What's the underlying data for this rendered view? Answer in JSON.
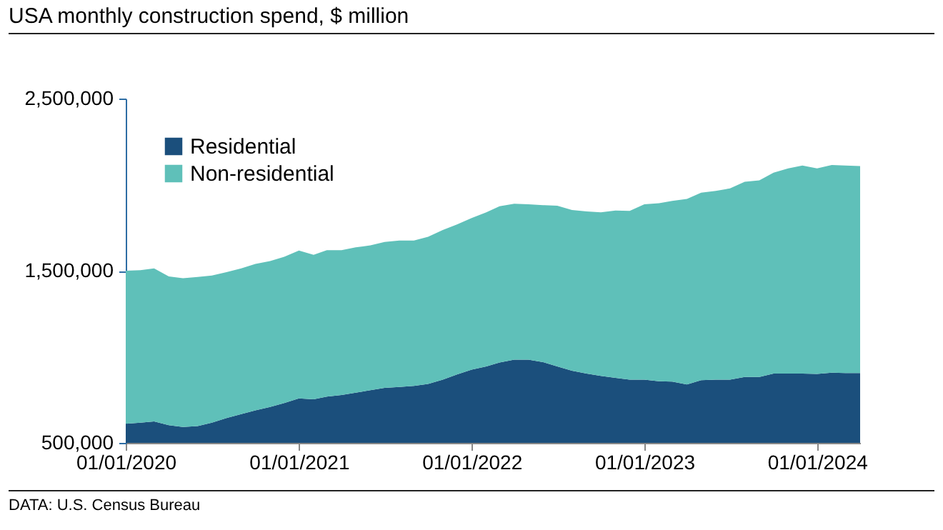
{
  "chart_data": {
    "type": "area",
    "stacked": true,
    "title": "USA monthly construction spend, $ million",
    "annotations": [
      "DATA: U.S. Census Bureau"
    ],
    "x": [
      "2020-01",
      "2020-02",
      "2020-03",
      "2020-04",
      "2020-05",
      "2020-06",
      "2020-07",
      "2020-08",
      "2020-09",
      "2020-10",
      "2020-11",
      "2020-12",
      "2021-01",
      "2021-02",
      "2021-03",
      "2021-04",
      "2021-05",
      "2021-06",
      "2021-07",
      "2021-08",
      "2021-09",
      "2021-10",
      "2021-11",
      "2021-12",
      "2022-01",
      "2022-02",
      "2022-03",
      "2022-04",
      "2022-05",
      "2022-06",
      "2022-07",
      "2022-08",
      "2022-09",
      "2022-10",
      "2022-11",
      "2022-12",
      "2023-01",
      "2023-02",
      "2023-03",
      "2023-04",
      "2023-05",
      "2023-06",
      "2023-07",
      "2023-08",
      "2023-09",
      "2023-10",
      "2023-11",
      "2023-12",
      "2024-01",
      "2024-02",
      "2024-03",
      "2024-04"
    ],
    "series": [
      {
        "name": "Residential",
        "color": "#1b4f7c",
        "values": [
          611000,
          617000,
          625000,
          603000,
          592000,
          597000,
          617000,
          644000,
          667000,
          689000,
          708000,
          731000,
          758000,
          753000,
          769000,
          778000,
          792000,
          806000,
          819000,
          825000,
          831000,
          842000,
          867000,
          897000,
          925000,
          944000,
          967000,
          983000,
          983000,
          969000,
          944000,
          919000,
          903000,
          889000,
          878000,
          867000,
          867000,
          858000,
          856000,
          839000,
          864000,
          867000,
          867000,
          883000,
          883000,
          903000,
          903000,
          903000,
          900000,
          908000,
          906000,
          906000
        ]
      },
      {
        "name": "Non-residential",
        "color": "#5fc0b9",
        "values": [
          889000,
          886000,
          889000,
          864000,
          864000,
          867000,
          855000,
          848000,
          847000,
          850000,
          848000,
          850000,
          859000,
          839000,
          850000,
          841000,
          844000,
          841000,
          848000,
          850000,
          844000,
          855000,
          869000,
          872000,
          881000,
          895000,
          908000,
          906000,
          903000,
          912000,
          934000,
          934000,
          941000,
          950000,
          972000,
          980000,
          1019000,
          1034000,
          1050000,
          1078000,
          1089000,
          1097000,
          1111000,
          1134000,
          1142000,
          1166000,
          1191000,
          1208000,
          1194000,
          1206000,
          1205000,
          1202000
        ]
      }
    ],
    "xlim": [
      "2020-01",
      "2024-04"
    ],
    "xticks": [
      {
        "value": "2020-01",
        "label": "01/01/2020"
      },
      {
        "value": "2021-01",
        "label": "01/01/2021"
      },
      {
        "value": "2022-01",
        "label": "01/01/2022"
      },
      {
        "value": "2023-01",
        "label": "01/01/2023"
      },
      {
        "value": "2024-01",
        "label": "01/01/2024"
      }
    ],
    "ylim": [
      500000,
      2500000
    ],
    "yticks": [
      {
        "value": 500000,
        "label": "500,000"
      },
      {
        "value": 1500000,
        "label": "1,500,000"
      },
      {
        "value": 2500000,
        "label": "2,500,000"
      }
    ],
    "grid": false,
    "legend": "top left"
  }
}
